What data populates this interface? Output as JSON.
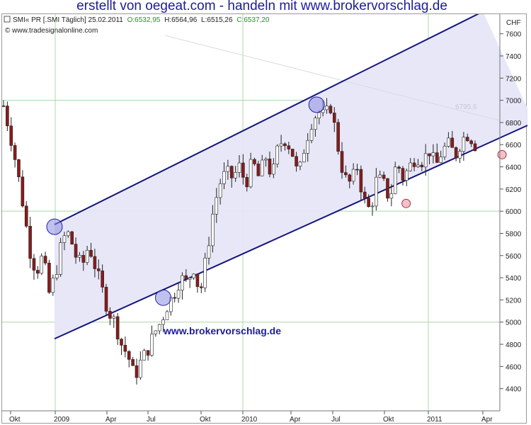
{
  "header": {
    "title": "erstellt von oegeat.com - handeln mit www.brokervorschlag.de"
  },
  "info": {
    "symbol": "SMI« PR [.SMI  Täglich] 25.02.2011",
    "open": "O:6532,95",
    "high": "H:6564,96",
    "low": "L:6515,26",
    "close": "C:6537,20",
    "copyright": "© www.tradesignalonline.com"
  },
  "colors": {
    "channel_line": "#14147a",
    "channel_fill": "#e6e6f8",
    "candle_up": "#ffffff",
    "candle_down": "#8c1a1a",
    "wick": "#222222",
    "marker_blue": "#8e8ee4",
    "marker_pink": "#f3b9c4",
    "watermark": "#1c1c9c"
  },
  "chart_data": {
    "type": "candlestick",
    "currency": "CHF",
    "ylim": [
      4200,
      7700
    ],
    "y_ticks": [
      4400,
      4600,
      4800,
      5000,
      5200,
      5400,
      5600,
      5800,
      6000,
      6200,
      6400,
      6600,
      6800,
      7000,
      7200,
      7400,
      7600
    ],
    "x_ticks": [
      "Okt",
      "2009",
      "Apr",
      "Jul",
      "Okt",
      "2010",
      "Apr",
      "Jul",
      "Okt",
      "2011",
      "Apr"
    ],
    "watermark": "www.brokervorschlag.de",
    "faded_label": "6795,6",
    "close_path": [
      [
        0,
        6950
      ],
      [
        1,
        6700
      ],
      [
        2,
        6400
      ],
      [
        3,
        6050
      ],
      [
        4,
        5650
      ],
      [
        5,
        5450
      ],
      [
        6,
        5600
      ],
      [
        7,
        5250
      ],
      [
        8,
        5450
      ],
      [
        9,
        5750
      ],
      [
        10,
        5800
      ],
      [
        11,
        5600
      ],
      [
        12,
        5500
      ],
      [
        13,
        5700
      ],
      [
        14,
        5500
      ],
      [
        15,
        5300
      ],
      [
        16,
        5100
      ],
      [
        17,
        5000
      ],
      [
        18,
        4800
      ],
      [
        19,
        4700
      ],
      [
        20,
        4500
      ],
      [
        21,
        4650
      ],
      [
        22,
        4750
      ],
      [
        23,
        4900
      ],
      [
        24,
        5000
      ],
      [
        25,
        5150
      ],
      [
        26,
        5250
      ],
      [
        27,
        5400
      ],
      [
        28,
        5350
      ],
      [
        29,
        5500
      ],
      [
        30,
        5250
      ],
      [
        31,
        5600
      ],
      [
        32,
        6000
      ],
      [
        33,
        6250
      ],
      [
        34,
        6350
      ],
      [
        35,
        6300
      ],
      [
        36,
        6400
      ],
      [
        37,
        6250
      ],
      [
        38,
        6450
      ],
      [
        39,
        6300
      ],
      [
        40,
        6500
      ],
      [
        41,
        6300
      ],
      [
        42,
        6600
      ],
      [
        43,
        6650
      ],
      [
        44,
        6550
      ],
      [
        45,
        6300
      ],
      [
        46,
        6600
      ],
      [
        47,
        6800
      ],
      [
        48,
        6900
      ],
      [
        49,
        6850
      ],
      [
        50,
        6950
      ],
      [
        51,
        6600
      ],
      [
        52,
        6300
      ],
      [
        53,
        6250
      ],
      [
        54,
        6400
      ],
      [
        55,
        6100
      ],
      [
        56,
        6000
      ],
      [
        57,
        6300
      ],
      [
        58,
        6250
      ],
      [
        59,
        6100
      ],
      [
        60,
        6450
      ],
      [
        61,
        6300
      ],
      [
        62,
        6400
      ],
      [
        63,
        6500
      ],
      [
        64,
        6450
      ],
      [
        65,
        6550
      ],
      [
        66,
        6400
      ],
      [
        67,
        6550
      ],
      [
        68,
        6600
      ],
      [
        69,
        6500
      ],
      [
        70,
        6650
      ],
      [
        71,
        6700
      ],
      [
        72,
        6600
      ]
    ],
    "channel": {
      "upper": [
        [
          0,
          5880
        ],
        [
          67,
          7800
        ]
      ],
      "lower": [
        [
          0,
          4850
        ],
        [
          75,
          6800
        ]
      ]
    },
    "markers": [
      {
        "kind": "blue",
        "point": [
          0,
          5860
        ]
      },
      {
        "kind": "blue",
        "point": [
          17,
          5220
        ]
      },
      {
        "kind": "blue",
        "point": [
          41,
          6960
        ]
      },
      {
        "kind": "pink",
        "point": [
          55,
          6070
        ]
      },
      {
        "kind": "pink",
        "point": [
          70,
          6510
        ]
      }
    ]
  }
}
